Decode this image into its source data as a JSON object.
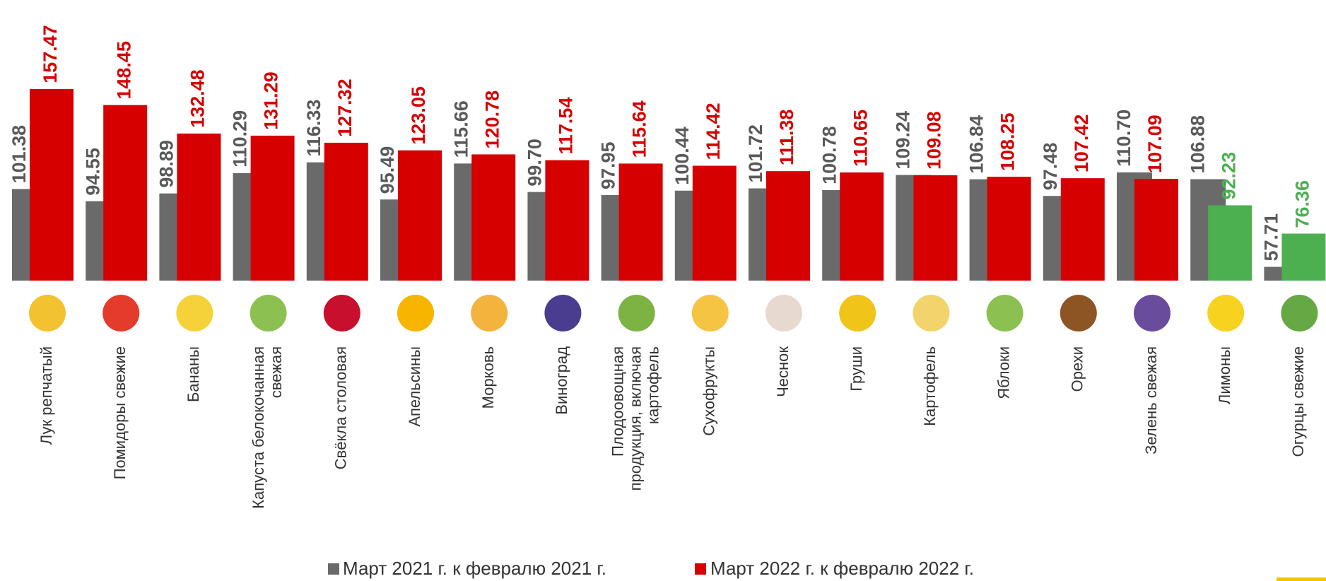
{
  "chart_data": {
    "type": "bar",
    "categories": [
      "Лук репчатый",
      "Помидоры свежие",
      "Бананы",
      "Капуста белокочанная свежая",
      "Свёкла столовая",
      "Апельсины",
      "Морковь",
      "Виноград",
      "Плодоовощная продукция, включая картофель",
      "Сухофрукты",
      "Чеснок",
      "Груши",
      "Картофель",
      "Яблоки",
      "Орехи",
      "Зелень свежая",
      "Лимоны",
      "Огурцы свежие"
    ],
    "series": [
      {
        "name": "Март 2021 г. к февралю 2021 г.",
        "color": "#6a6a6a",
        "values": [
          101.38,
          94.55,
          98.89,
          110.29,
          116.33,
          95.49,
          115.66,
          99.7,
          97.95,
          100.44,
          101.72,
          100.78,
          109.24,
          106.84,
          97.48,
          110.7,
          106.88,
          57.71
        ],
        "value_labels": [
          "101.38",
          "94.55",
          "98.89",
          "110.29",
          "116.33",
          "95.49",
          "115.66",
          "99.70",
          "97.95",
          "100.44",
          "101.72",
          "100.78",
          "109.24",
          "106.84",
          "97.48",
          "110.70",
          "106.88",
          "57.71"
        ]
      },
      {
        "name": "Март 2022 г. к февралю 2022 г.",
        "color": "#d60000",
        "colors": [
          "#d60000",
          "#d60000",
          "#d60000",
          "#d60000",
          "#d60000",
          "#d60000",
          "#d60000",
          "#d60000",
          "#d60000",
          "#d60000",
          "#d60000",
          "#d60000",
          "#d60000",
          "#d60000",
          "#d60000",
          "#d60000",
          "#4caf50",
          "#4caf50"
        ],
        "values": [
          157.47,
          148.45,
          132.48,
          131.29,
          127.32,
          123.05,
          120.78,
          117.54,
          115.64,
          114.42,
          111.38,
          110.65,
          109.08,
          108.25,
          107.42,
          107.09,
          92.23,
          76.36
        ],
        "value_labels": [
          "157.47",
          "148.45",
          "132.48",
          "131.29",
          "127.32",
          "123.05",
          "120.78",
          "117.54",
          "115.64",
          "114.42",
          "111.38",
          "110.65",
          "109.08",
          "108.25",
          "107.42",
          "107.09",
          "92.23",
          "76.36"
        ]
      }
    ],
    "ylim": [
      50,
      160
    ],
    "legend": "bottom"
  }
}
